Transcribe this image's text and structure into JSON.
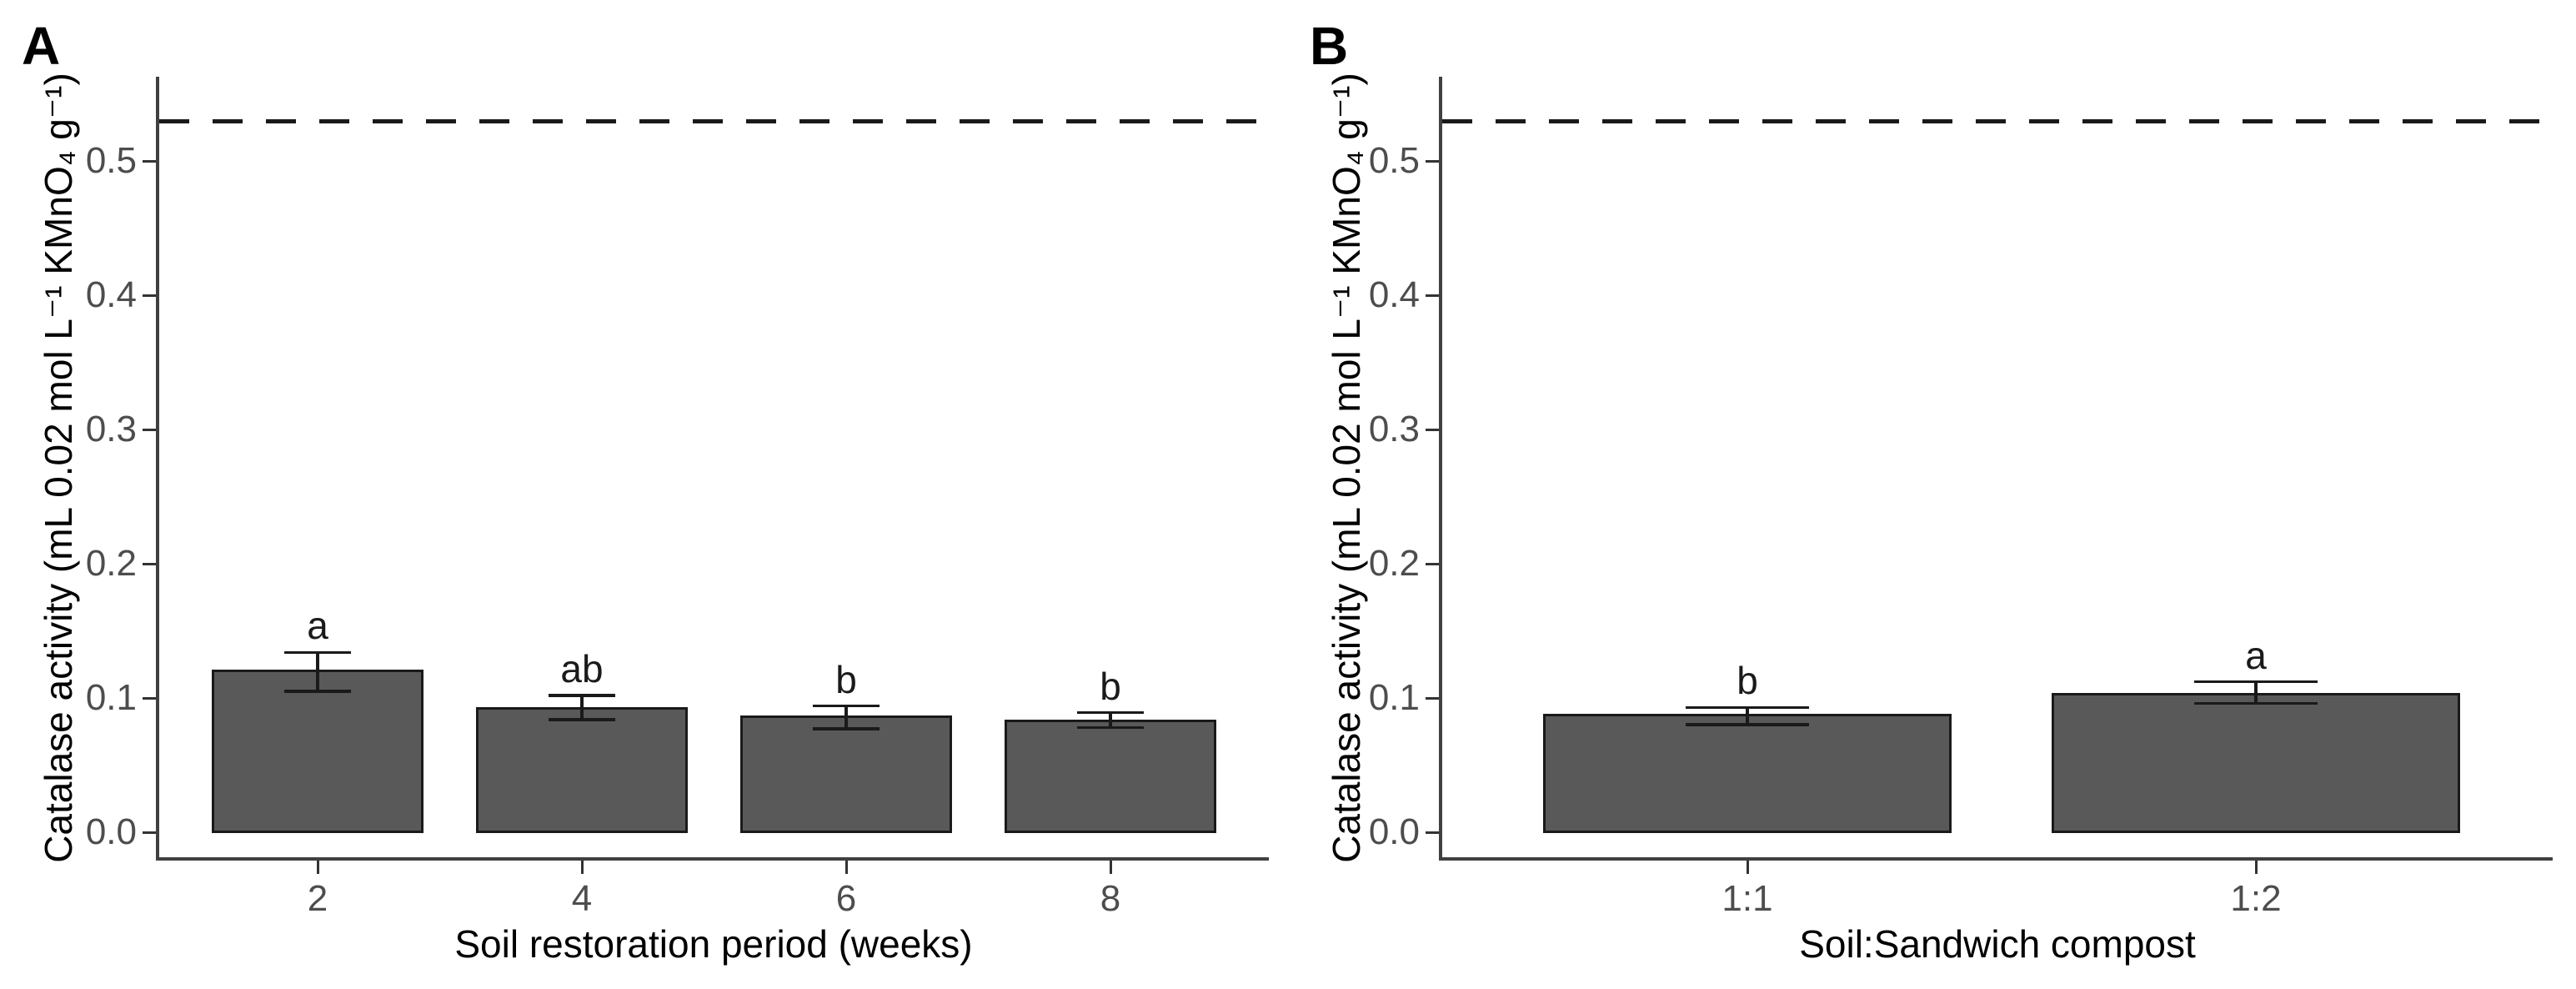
{
  "figure": {
    "background": "#ffffff",
    "bar_fill": "#595959",
    "bar_outline": "#1a1a1a",
    "axis_color": "#404040",
    "tick_color": "#333333",
    "tick_label_color": "#4d4d4d",
    "text_color": "#000000",
    "error_bar_color": "#1a1a1a",
    "reference_line_color": "#1a1a1a"
  },
  "chart_data": [
    {
      "type": "bar",
      "panel_label": "A",
      "title": "",
      "xlabel": "Soil restoration period (weeks)",
      "ylabel": "Catalase activity (mL 0.02 mol L⁻¹ KMnO₄ g⁻¹)",
      "categories": [
        "2",
        "4",
        "6",
        "8"
      ],
      "values": [
        0.12,
        0.092,
        0.086,
        0.083
      ],
      "error_low": [
        0.105,
        0.084,
        0.077,
        0.078
      ],
      "error_high": [
        0.134,
        0.102,
        0.094,
        0.089
      ],
      "sig_letters": [
        "a",
        "ab",
        "b",
        "b"
      ],
      "reference_line": 0.53,
      "reference_line_style": "dashed",
      "ylim": [
        0,
        0.55
      ],
      "yticks": [
        0.0,
        0.1,
        0.2,
        0.3,
        0.4,
        0.5
      ],
      "ytick_labels": [
        "0.0",
        "0.1",
        "0.2",
        "0.3",
        "0.4",
        "0.5"
      ],
      "grid": false,
      "legend": "none"
    },
    {
      "type": "bar",
      "panel_label": "B",
      "title": "",
      "xlabel": "Soil:Sandwich compost",
      "ylabel": "Catalase activity (mL 0.02 mol L⁻¹ KMnO₄ g⁻¹)",
      "categories": [
        "1:1",
        "1:2"
      ],
      "values": [
        0.087,
        0.103
      ],
      "error_low": [
        0.08,
        0.096
      ],
      "error_high": [
        0.093,
        0.112
      ],
      "sig_letters": [
        "b",
        "a"
      ],
      "reference_line": 0.53,
      "reference_line_style": "dashed",
      "ylim": [
        0,
        0.55
      ],
      "yticks": [
        0.0,
        0.1,
        0.2,
        0.3,
        0.4,
        0.5
      ],
      "ytick_labels": [
        "0.0",
        "0.1",
        "0.2",
        "0.3",
        "0.4",
        "0.5"
      ],
      "grid": false,
      "legend": "none"
    }
  ]
}
